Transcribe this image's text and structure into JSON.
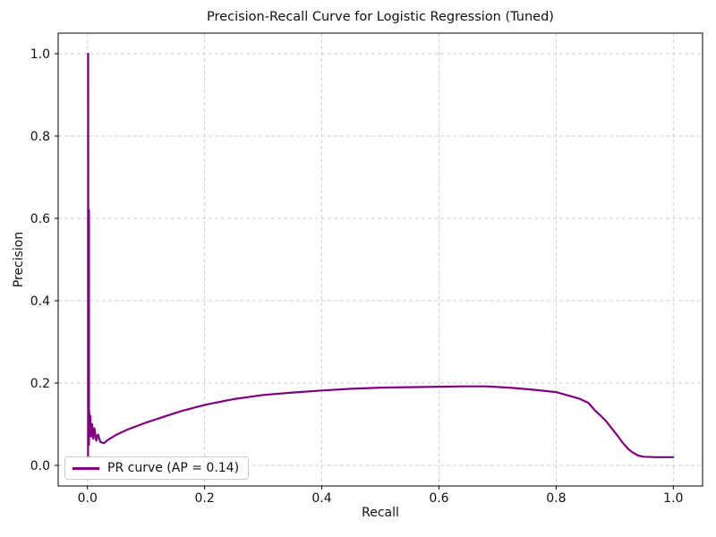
{
  "figure": {
    "background": "#ffffff",
    "frame_color": "#000000",
    "text_color": "#111111"
  },
  "chart_data": {
    "type": "line",
    "title": "Precision-Recall Curve for Logistic Regression (Tuned)",
    "xlabel": "Recall",
    "ylabel": "Precision",
    "xlim": [
      -0.05,
      1.05
    ],
    "ylim": [
      -0.05,
      1.05
    ],
    "xtick_values": [
      0.0,
      0.2,
      0.4,
      0.6,
      0.8,
      1.0
    ],
    "xtick_labels": [
      "0.0",
      "0.2",
      "0.4",
      "0.6",
      "0.8",
      "1.0"
    ],
    "ytick_values": [
      0.0,
      0.2,
      0.4,
      0.6,
      0.8,
      1.0
    ],
    "ytick_labels": [
      "0.0",
      "0.2",
      "0.4",
      "0.6",
      "0.8",
      "1.0"
    ],
    "grid": {
      "on": true,
      "style": "dashed",
      "color": "#cfcfcf"
    },
    "legend": {
      "position": "lower left",
      "entries": [
        {
          "label": "PR curve (AP = 0.14)",
          "color": "#800080"
        }
      ]
    },
    "series": [
      {
        "name": "PR curve (AP = 0.14)",
        "color": "#800080",
        "linewidth": 2.2,
        "points": [
          [
            0.001,
            0.02
          ],
          [
            0.001,
            1.0
          ],
          [
            0.0012,
            1.0
          ],
          [
            0.0015,
            0.45
          ],
          [
            0.0025,
            0.62
          ],
          [
            0.0025,
            0.05
          ],
          [
            0.003,
            0.13
          ],
          [
            0.004,
            0.08
          ],
          [
            0.005,
            0.12
          ],
          [
            0.006,
            0.07
          ],
          [
            0.008,
            0.1
          ],
          [
            0.01,
            0.065
          ],
          [
            0.012,
            0.09
          ],
          [
            0.015,
            0.06
          ],
          [
            0.018,
            0.075
          ],
          [
            0.022,
            0.057
          ],
          [
            0.028,
            0.054
          ],
          [
            0.035,
            0.062
          ],
          [
            0.05,
            0.075
          ],
          [
            0.07,
            0.088
          ],
          [
            0.1,
            0.104
          ],
          [
            0.13,
            0.118
          ],
          [
            0.16,
            0.132
          ],
          [
            0.2,
            0.147
          ],
          [
            0.25,
            0.161
          ],
          [
            0.3,
            0.171
          ],
          [
            0.35,
            0.177
          ],
          [
            0.4,
            0.182
          ],
          [
            0.45,
            0.186
          ],
          [
            0.5,
            0.189
          ],
          [
            0.55,
            0.19
          ],
          [
            0.6,
            0.191
          ],
          [
            0.64,
            0.192
          ],
          [
            0.68,
            0.192
          ],
          [
            0.72,
            0.189
          ],
          [
            0.76,
            0.184
          ],
          [
            0.8,
            0.178
          ],
          [
            0.82,
            0.17
          ],
          [
            0.84,
            0.162
          ],
          [
            0.855,
            0.152
          ],
          [
            0.866,
            0.134
          ],
          [
            0.875,
            0.122
          ],
          [
            0.885,
            0.108
          ],
          [
            0.895,
            0.09
          ],
          [
            0.905,
            0.072
          ],
          [
            0.912,
            0.058
          ],
          [
            0.918,
            0.048
          ],
          [
            0.924,
            0.039
          ],
          [
            0.93,
            0.032
          ],
          [
            0.94,
            0.024
          ],
          [
            0.95,
            0.021
          ],
          [
            0.97,
            0.02
          ],
          [
            1.0,
            0.02
          ]
        ]
      }
    ]
  }
}
